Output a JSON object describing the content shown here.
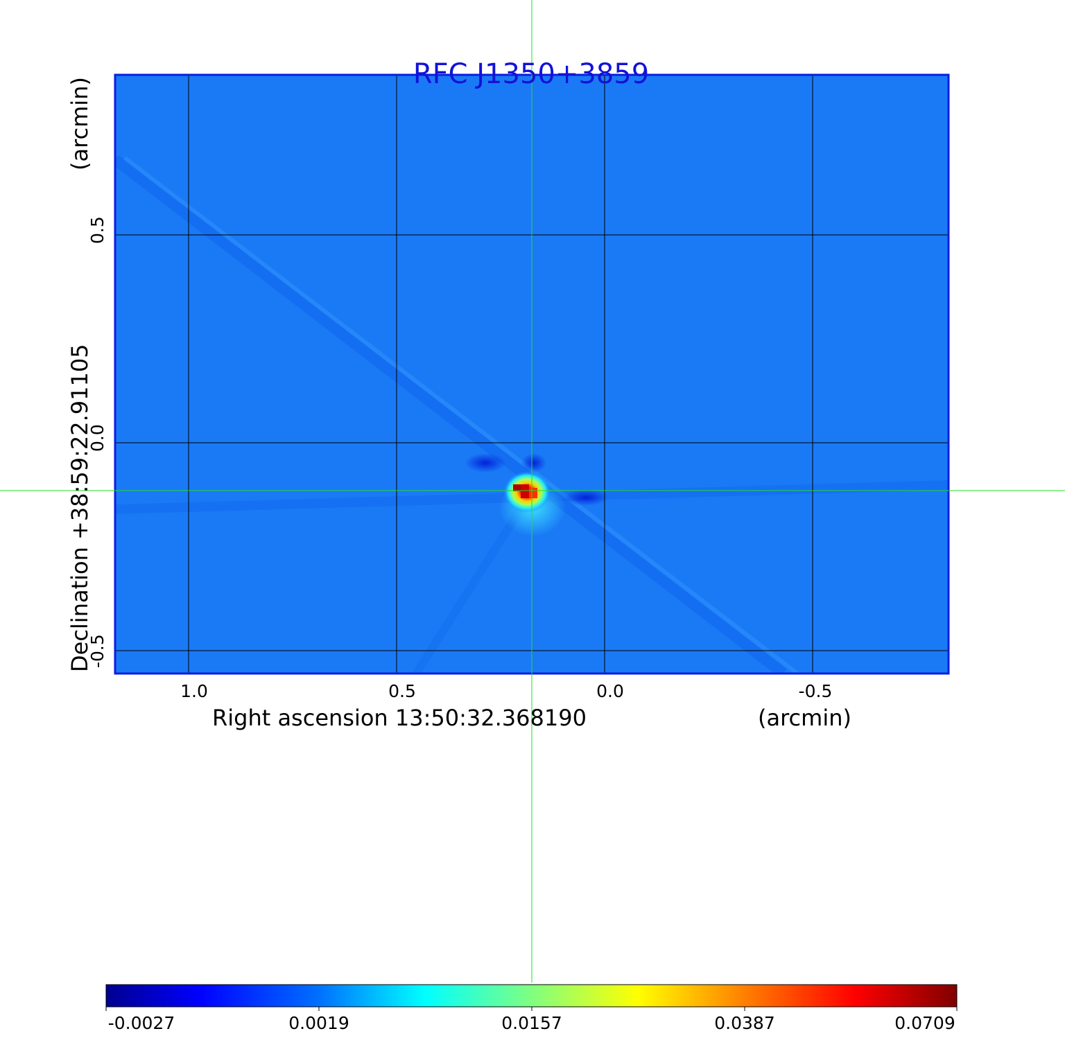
{
  "title": "RFC J1350+3859",
  "x_axis": {
    "label": "Right ascension  13:50:32.368190",
    "unit": "(arcmin)",
    "ticks": [
      "1.0",
      "0.5",
      "0.0",
      "-0.5"
    ]
  },
  "y_axis": {
    "label": "Declination  +38:59:22.91105",
    "unit": "(arcmin)",
    "ticks": [
      "0.5",
      "0.0",
      "-0.5"
    ]
  },
  "colorbar": {
    "colormap": "jet",
    "ticks": [
      "-0.0027",
      "0.0019",
      "0.0157",
      "0.0387",
      "0.0709"
    ]
  },
  "chart_data": {
    "type": "heatmap",
    "title": "RFC J1350+3859",
    "xlabel": "Right ascension  13:50:32.368190 (arcmin)",
    "ylabel": "Declination  +38:59:22.91105 (arcmin)",
    "xlim": [
      1.18,
      -0.83
    ],
    "ylim": [
      -0.56,
      0.88
    ],
    "grid": true,
    "x_ticks": [
      1.0,
      0.5,
      0.0,
      -0.5
    ],
    "y_ticks": [
      0.5,
      0.0,
      -0.5
    ],
    "colorbar_range": [
      -0.0027,
      0.0709
    ],
    "colorbar_ticks": [
      -0.0027,
      0.0019,
      0.0157,
      0.0387,
      0.0709
    ],
    "peak": {
      "x": 0.18,
      "y": -0.12,
      "value": 0.0709
    },
    "crosshair": {
      "x": 0.175,
      "y": -0.115
    },
    "background_level": -0.0002
  },
  "colors": {
    "title": "#1212d8",
    "frame": "#0a1ee0",
    "crosshair": "#22dd22",
    "grid": "#000000"
  }
}
